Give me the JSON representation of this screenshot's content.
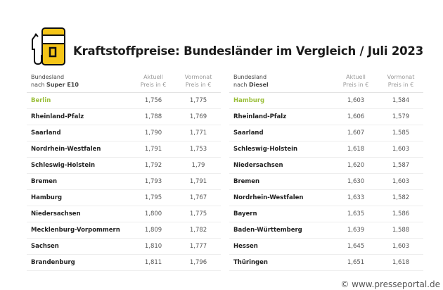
{
  "icon": "fuel-pump-icon",
  "title": "Kraftstoffpreise: Bundesländer im Vergleich / Juli 2023",
  "accent": "#f5c518",
  "highlight": "#9bbf3a",
  "tables": [
    {
      "header": {
        "col0a": "Bundesland",
        "col0b_prefix": "nach ",
        "col0b_bold": "Super E10",
        "col1a": "Aktuell",
        "col1b": "Preis in €",
        "col2a": "Vormonat",
        "col2b": "Preis in €"
      },
      "rows": [
        [
          "Berlin",
          "1,756",
          "1,775"
        ],
        [
          "Rheinland-Pfalz",
          "1,788",
          "1,769"
        ],
        [
          "Saarland",
          "1,790",
          "1,771"
        ],
        [
          "Nordrhein-Westfalen",
          "1,791",
          "1,753"
        ],
        [
          "Schleswig-Holstein",
          "1,792",
          "1,79"
        ],
        [
          "Bremen",
          "1,793",
          "1,791"
        ],
        [
          "Hamburg",
          "1,795",
          "1,767"
        ],
        [
          "Niedersachsen",
          "1,800",
          "1,775"
        ],
        [
          "Mecklenburg-Vorpommern",
          "1,809",
          "1,782"
        ],
        [
          "Sachsen",
          "1,810",
          "1,777"
        ],
        [
          "Brandenburg",
          "1,811",
          "1,796"
        ]
      ]
    },
    {
      "header": {
        "col0a": "Bundesland",
        "col0b_prefix": "nach ",
        "col0b_bold": "Diesel",
        "col1a": "Aktuell",
        "col1b": "Preis in €",
        "col2a": "Vormonat",
        "col2b": "Preis in €"
      },
      "rows": [
        [
          "Hamburg",
          "1,603",
          "1,584"
        ],
        [
          "Rheinland-Pfalz",
          "1,606",
          "1,579"
        ],
        [
          "Saarland",
          "1,607",
          "1,585"
        ],
        [
          "Schleswig-Holstein",
          "1,618",
          "1,603"
        ],
        [
          "Niedersachsen",
          "1,620",
          "1,587"
        ],
        [
          "Bremen",
          "1,630",
          "1,603"
        ],
        [
          "Nordrhein-Westfalen",
          "1,633",
          "1,582"
        ],
        [
          "Bayern",
          "1,635",
          "1,586"
        ],
        [
          "Baden-Württemberg",
          "1,639",
          "1,588"
        ],
        [
          "Hessen",
          "1,645",
          "1,603"
        ],
        [
          "Thüringen",
          "1,651",
          "1,618"
        ]
      ]
    }
  ],
  "watermark": "© www.presseportal.de"
}
